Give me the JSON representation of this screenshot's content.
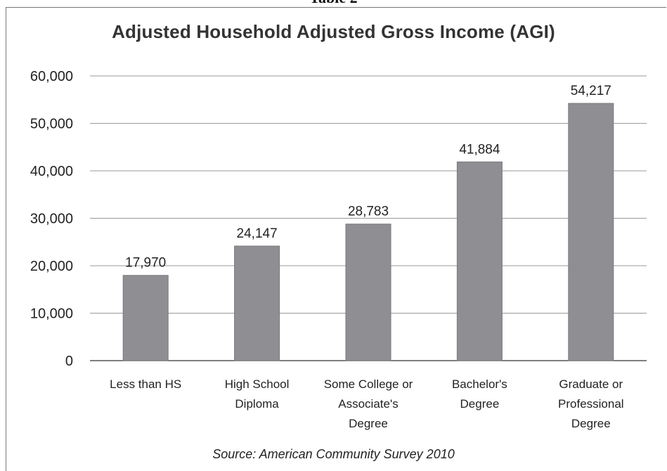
{
  "caption": "Table 2",
  "source_note": "Source: American Community Survey 2010",
  "colors": {
    "bar": "#8f8f93",
    "bar_edge": "#7a7a7e",
    "grid": "#9a9a9a",
    "axis": "#555555"
  },
  "chart_data": {
    "type": "bar",
    "title": "Adjusted Household Adjusted Gross Income (AGI)",
    "xlabel": "",
    "ylabel": "",
    "categories": [
      [
        "Less than HS"
      ],
      [
        "High School",
        "Diploma"
      ],
      [
        "Some College or",
        "Associate's",
        "Degree"
      ],
      [
        "Bachelor's",
        "Degree"
      ],
      [
        "Graduate or",
        "Professional",
        "Degree"
      ]
    ],
    "values": [
      17970,
      24147,
      28783,
      41884,
      54217
    ],
    "data_labels": [
      "17,970",
      "24,147",
      "28,783",
      "41,884",
      "54,217"
    ],
    "ylim": [
      0,
      60000
    ],
    "yticks": [
      0,
      10000,
      20000,
      30000,
      40000,
      50000,
      60000
    ],
    "ytick_labels": [
      "0",
      "10,000",
      "20,000",
      "30,000",
      "40,000",
      "50,000",
      "60,000"
    ],
    "grid": true,
    "legend": "none"
  }
}
